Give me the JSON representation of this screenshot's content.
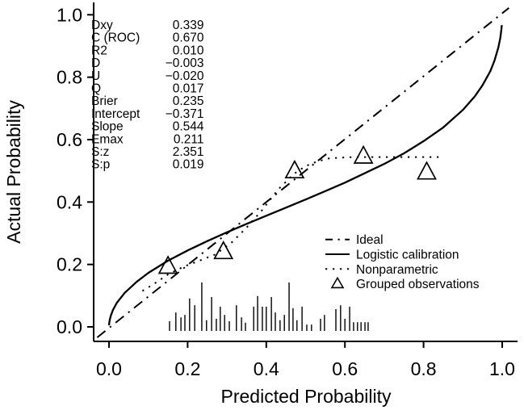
{
  "figure": {
    "background": "#ffffff",
    "ink_color": "#000000"
  },
  "chart_data": {
    "type": "line",
    "title": "",
    "xlabel": "Predicted Probability",
    "ylabel": "Actual Probability",
    "xlim": [
      0,
      1
    ],
    "ylim": [
      0,
      1
    ],
    "grid": false,
    "x_tick_values": [
      0,
      0.2,
      0.4,
      0.6,
      0.8,
      1.0
    ],
    "x_tick_labels": [
      "0.0",
      "0.2",
      "0.4",
      "0.6",
      "0.8",
      "1.0"
    ],
    "y_tick_values": [
      0,
      0.2,
      0.4,
      0.6,
      0.8,
      1.0
    ],
    "y_tick_labels": [
      "0.0",
      "0.2",
      "0.4",
      "0.6",
      "0.8",
      "1.0"
    ],
    "series": [
      {
        "name": "Ideal",
        "style": "dashdot",
        "points": [
          [
            -0.03,
            -0.034
          ],
          [
            1.017,
            1.022
          ]
        ]
      },
      {
        "name": "Logistic calibration",
        "style": "solid",
        "model": {
          "intercept": -0.371,
          "slope": 0.544
        },
        "points": [
          [
            0.0001,
            0.005
          ],
          [
            0.001,
            0.016
          ],
          [
            0.002,
            0.023
          ],
          [
            0.005,
            0.037
          ],
          [
            0.01,
            0.054
          ],
          [
            0.02,
            0.077
          ],
          [
            0.04,
            0.109
          ],
          [
            0.07,
            0.144
          ],
          [
            0.1,
            0.173
          ],
          [
            0.15,
            0.212
          ],
          [
            0.2,
            0.245
          ],
          [
            0.25,
            0.275
          ],
          [
            0.3,
            0.303
          ],
          [
            0.35,
            0.33
          ],
          [
            0.4,
            0.356
          ],
          [
            0.45,
            0.382
          ],
          [
            0.5,
            0.408
          ],
          [
            0.55,
            0.435
          ],
          [
            0.6,
            0.462
          ],
          [
            0.65,
            0.492
          ],
          [
            0.7,
            0.522
          ],
          [
            0.75,
            0.556
          ],
          [
            0.8,
            0.595
          ],
          [
            0.85,
            0.639
          ],
          [
            0.9,
            0.695
          ],
          [
            0.93,
            0.738
          ],
          [
            0.95,
            0.774
          ],
          [
            0.97,
            0.82
          ],
          [
            0.98,
            0.852
          ],
          [
            0.99,
            0.894
          ],
          [
            0.995,
            0.925
          ],
          [
            0.998,
            0.953
          ],
          [
            0.999,
            0.967
          ]
        ]
      },
      {
        "name": "Nonparametric",
        "style": "dotted",
        "points": [
          [
            0.085,
            0.115
          ],
          [
            0.115,
            0.138
          ],
          [
            0.15,
            0.168
          ],
          [
            0.19,
            0.193
          ],
          [
            0.23,
            0.212
          ],
          [
            0.27,
            0.232
          ],
          [
            0.31,
            0.268
          ],
          [
            0.35,
            0.318
          ],
          [
            0.39,
            0.375
          ],
          [
            0.43,
            0.44
          ],
          [
            0.47,
            0.49
          ],
          [
            0.5,
            0.515
          ],
          [
            0.53,
            0.53
          ],
          [
            0.56,
            0.54
          ],
          [
            0.62,
            0.544
          ],
          [
            0.7,
            0.544
          ],
          [
            0.78,
            0.544
          ],
          [
            0.85,
            0.544
          ]
        ]
      },
      {
        "name": "Grouped observations",
        "style": "triangles",
        "points": [
          [
            0.15,
            0.194
          ],
          [
            0.291,
            0.241
          ],
          [
            0.472,
            0.5
          ],
          [
            0.647,
            0.547
          ],
          [
            0.808,
            0.496
          ]
        ]
      }
    ],
    "rug": {
      "description": "distribution of predicted probabilities",
      "max_height_frac_of_y": 0.155,
      "spikes": [
        [
          0.154,
          0.2
        ],
        [
          0.17,
          0.38
        ],
        [
          0.183,
          0.28
        ],
        [
          0.193,
          0.33
        ],
        [
          0.205,
          0.67
        ],
        [
          0.218,
          0.53
        ],
        [
          0.236,
          1.0
        ],
        [
          0.248,
          0.22
        ],
        [
          0.261,
          0.7
        ],
        [
          0.273,
          0.25
        ],
        [
          0.283,
          0.5
        ],
        [
          0.294,
          0.33
        ],
        [
          0.306,
          0.2
        ],
        [
          0.324,
          0.53
        ],
        [
          0.337,
          0.28
        ],
        [
          0.347,
          0.17
        ],
        [
          0.368,
          0.5
        ],
        [
          0.378,
          0.72
        ],
        [
          0.39,
          0.5
        ],
        [
          0.4,
          0.5
        ],
        [
          0.413,
          0.7
        ],
        [
          0.423,
          0.38
        ],
        [
          0.435,
          0.22
        ],
        [
          0.446,
          0.33
        ],
        [
          0.458,
          1.0
        ],
        [
          0.468,
          0.47
        ],
        [
          0.478,
          0.22
        ],
        [
          0.491,
          0.5
        ],
        [
          0.503,
          0.13
        ],
        [
          0.515,
          0.13
        ],
        [
          0.538,
          0.25
        ],
        [
          0.548,
          0.33
        ],
        [
          0.577,
          0.45
        ],
        [
          0.589,
          0.53
        ],
        [
          0.6,
          0.25
        ],
        [
          0.612,
          0.5
        ],
        [
          0.622,
          0.18
        ],
        [
          0.632,
          0.18
        ],
        [
          0.641,
          0.18
        ],
        [
          0.651,
          0.18
        ],
        [
          0.659,
          0.18
        ]
      ]
    },
    "legend": {
      "position": "bottom-right",
      "entries": [
        {
          "label": "Ideal",
          "glyph": "dashdot"
        },
        {
          "label": "Logistic calibration",
          "glyph": "solid"
        },
        {
          "label": "Nonparametric",
          "glyph": "dotted"
        },
        {
          "label": "Grouped observations",
          "glyph": "triangle"
        }
      ]
    },
    "stats_panel": [
      {
        "label": "Dxy",
        "value": "0.339"
      },
      {
        "label": "C (ROC)",
        "value": "0.670"
      },
      {
        "label": "R2",
        "value": "0.010"
      },
      {
        "label": "D",
        "value": "−0.003"
      },
      {
        "label": "U",
        "value": "−0.020"
      },
      {
        "label": "Q",
        "value": "0.017"
      },
      {
        "label": "Brier",
        "value": "0.235"
      },
      {
        "label": "Intercept",
        "value": "−0.371"
      },
      {
        "label": "Slope",
        "value": "0.544"
      },
      {
        "label": "Emax",
        "value": "0.211"
      },
      {
        "label": "S:z",
        "value": "2.351"
      },
      {
        "label": "S:p",
        "value": "0.019"
      }
    ]
  }
}
